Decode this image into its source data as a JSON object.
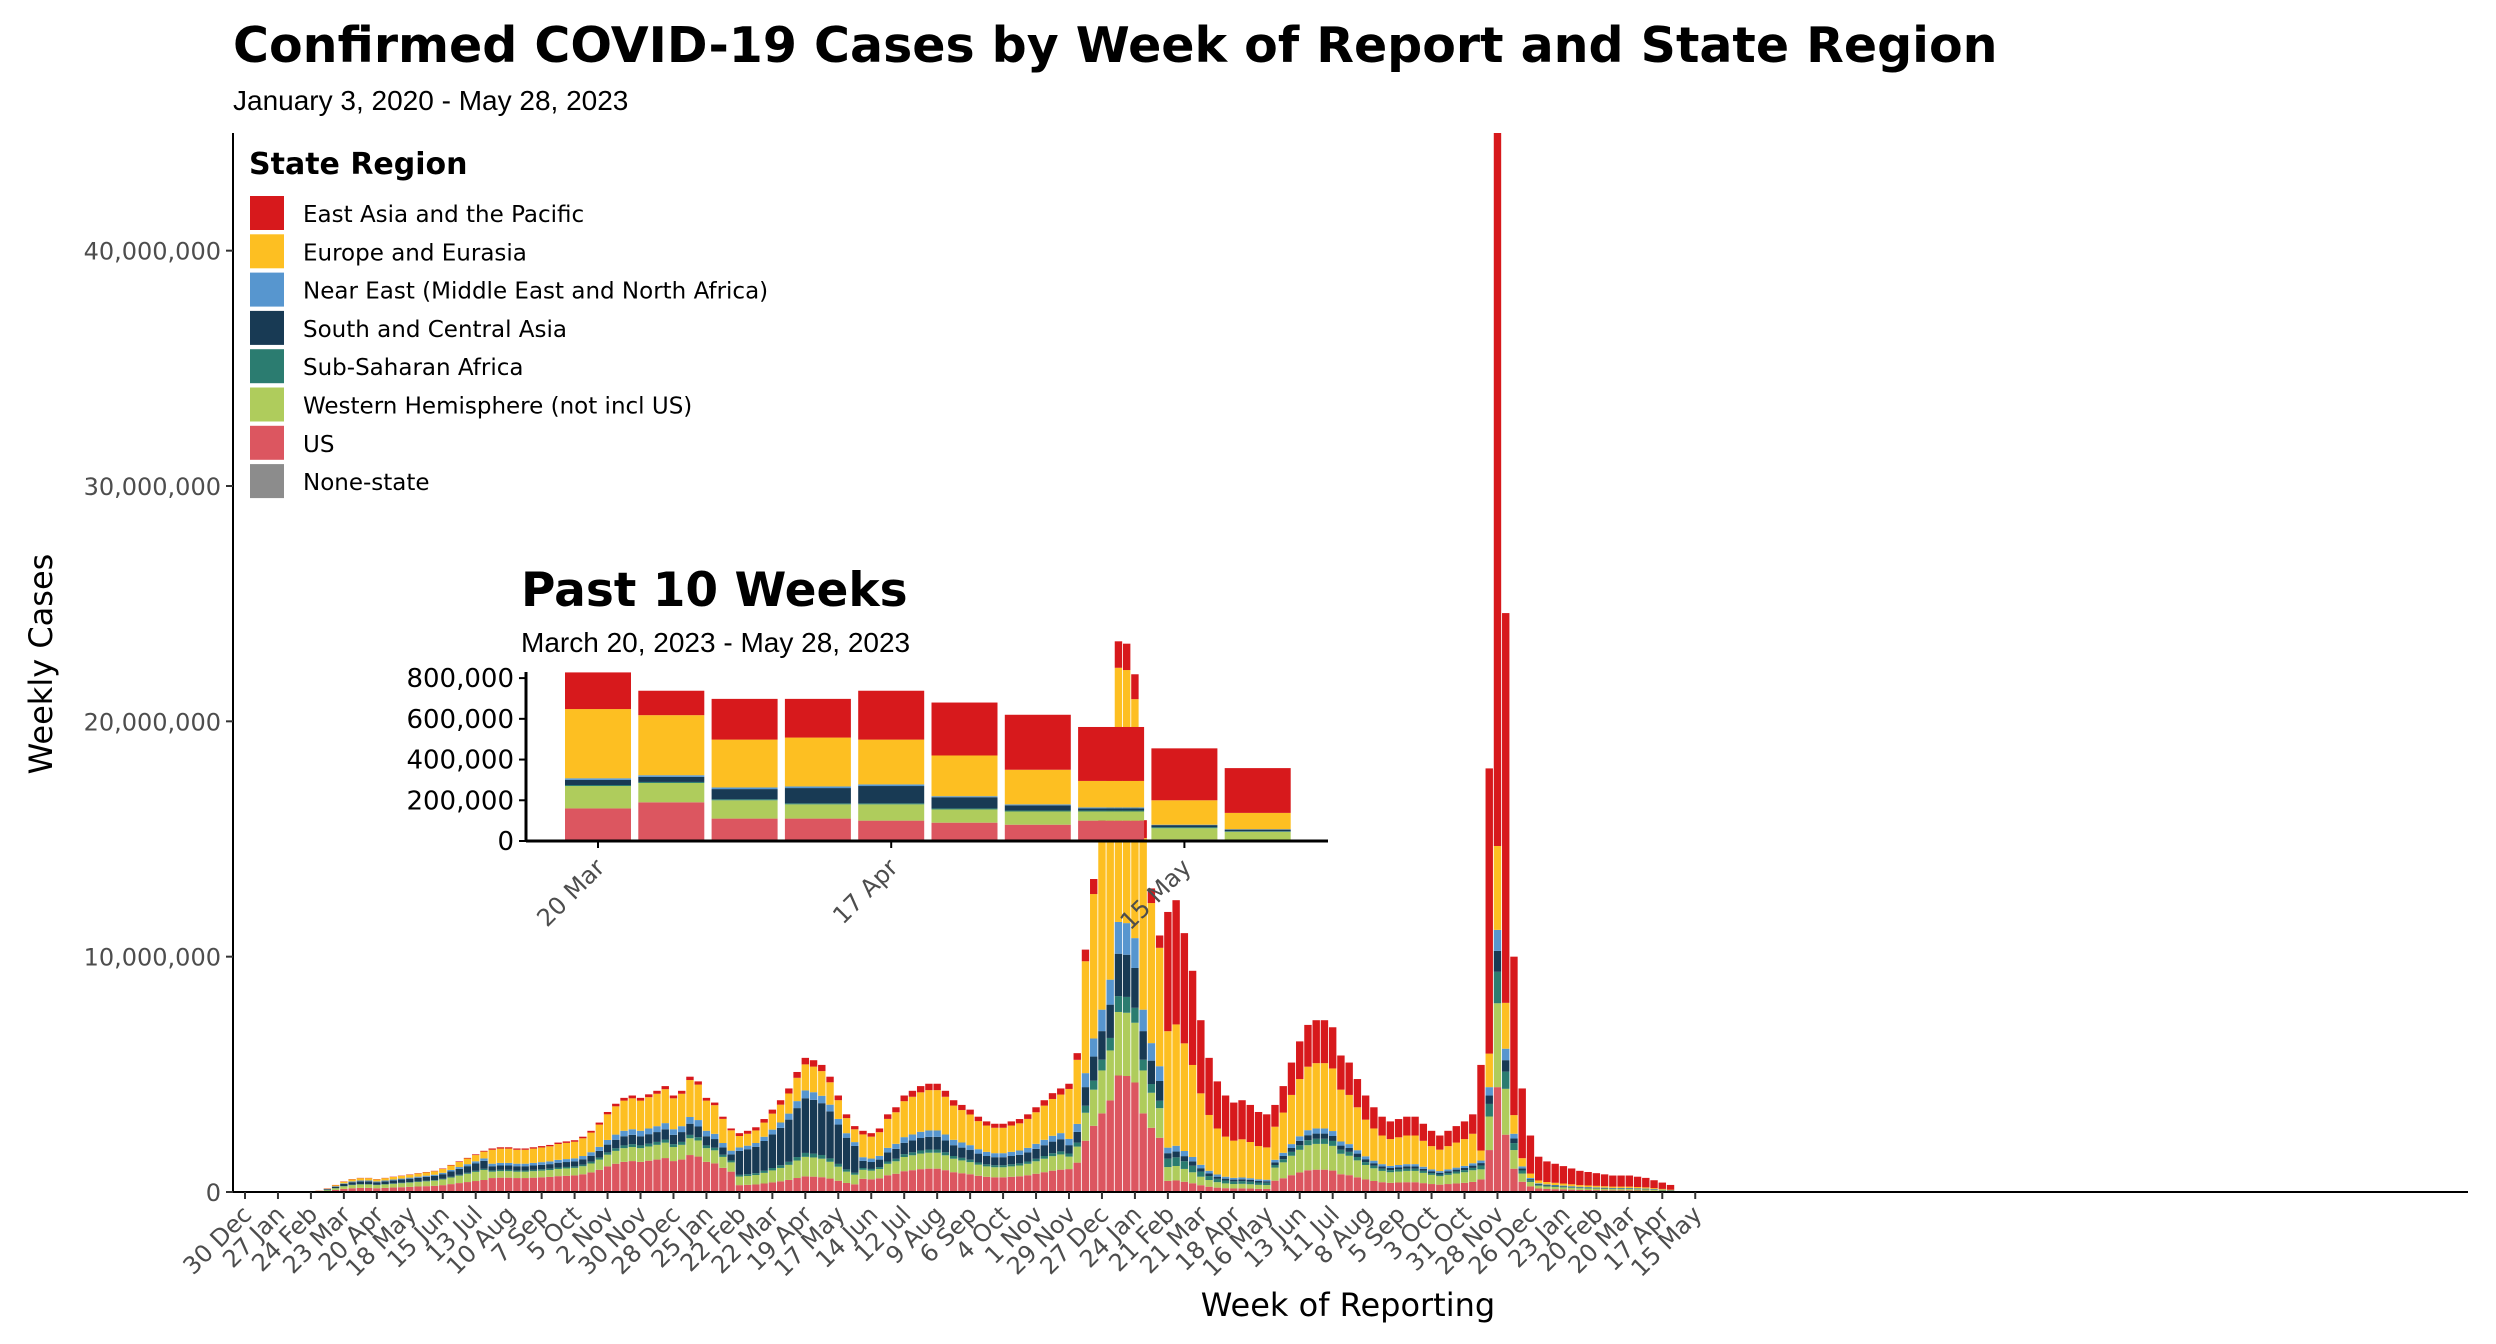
{
  "chart_data": [
    {
      "type": "bar",
      "stacked": true,
      "title": "Confirmed COVID-19 Cases by Week of Report and State Region",
      "subtitle": "January 3, 2020 - May 28, 2023",
      "xlabel": "Week of Reporting",
      "ylabel": "Weekly Cases",
      "ylim": [
        0,
        45000000
      ],
      "y_ticks": [
        0,
        10000000,
        20000000,
        30000000,
        40000000
      ],
      "y_tick_labels": [
        "0",
        "10,000,000",
        "20,000,000",
        "30,000,000",
        "40,000,000"
      ],
      "x_tick_labels": [
        "30 Dec",
        "27 Jan",
        "24 Feb",
        "23 Mar",
        "20 Apr",
        "18 May",
        "15 Jun",
        "13 Jul",
        "10 Aug",
        "7 Sep",
        "5 Oct",
        "2 Nov",
        "30 Nov",
        "28 Dec",
        "25 Jan",
        "22 Feb",
        "22 Mar",
        "19 Apr",
        "17 May",
        "14 Jun",
        "12 Jul",
        "9 Aug",
        "6 Sep",
        "4 Oct",
        "1 Nov",
        "29 Nov",
        "27 Dec",
        "24 Jan",
        "21 Feb",
        "21 Mar",
        "18 Apr",
        "16 May",
        "13 Jun",
        "11 Jul",
        "8 Aug",
        "5 Sep",
        "3 Oct",
        "31 Oct",
        "28 Nov",
        "26 Dec",
        "23 Jan",
        "20 Feb",
        "20 Mar",
        "17 Apr",
        "15 May"
      ],
      "grid": false,
      "legend": {
        "title": "State Region",
        "placement": "top-left",
        "entries": [
          {
            "name": "East Asia and the Pacific",
            "color": "#d7191c"
          },
          {
            "name": "Europe and Eurasia",
            "color": "#fdbf22"
          },
          {
            "name": "Near East (Middle East and North Africa)",
            "color": "#5796cf"
          },
          {
            "name": "South and Central Asia",
            "color": "#183a54"
          },
          {
            "name": "Sub-Saharan Africa",
            "color": "#2b7c70"
          },
          {
            "name": "Western Hemisphere (not incl US)",
            "color": "#afcc5c"
          },
          {
            "name": "US",
            "color": "#dc5660"
          },
          {
            "name": "None-state",
            "color": "#8c8c8c"
          }
        ]
      },
      "weeks_per_tick": 4,
      "weekly_totals": [
        0,
        0,
        0,
        0,
        0,
        0,
        0,
        0,
        0,
        0.05,
        0.15,
        0.3,
        0.45,
        0.55,
        0.6,
        0.6,
        0.55,
        0.6,
        0.65,
        0.7,
        0.75,
        0.8,
        0.85,
        0.9,
        1.0,
        1.15,
        1.3,
        1.45,
        1.6,
        1.75,
        1.85,
        1.9,
        1.9,
        1.85,
        1.85,
        1.9,
        1.95,
        2.0,
        2.1,
        2.15,
        2.2,
        2.35,
        2.6,
        2.95,
        3.4,
        3.75,
        4.0,
        4.1,
        4.0,
        4.15,
        4.3,
        4.5,
        4.1,
        4.3,
        4.9,
        4.7,
        4.0,
        3.8,
        3.2,
        2.7,
        2.5,
        2.6,
        2.75,
        3.1,
        3.5,
        3.9,
        4.4,
        5.1,
        5.7,
        5.6,
        5.4,
        4.9,
        4.1,
        3.3,
        2.8,
        2.6,
        2.5,
        2.7,
        3.3,
        3.6,
        4.1,
        4.3,
        4.5,
        4.6,
        4.6,
        4.3,
        3.9,
        3.7,
        3.5,
        3.2,
        3.0,
        2.9,
        2.9,
        3.0,
        3.1,
        3.3,
        3.6,
        3.9,
        4.2,
        4.4,
        4.6,
        5.9,
        10.3,
        13.3,
        15.8,
        18.4,
        23.4,
        23.3,
        22.0,
        15.8,
        12.9,
        10.9,
        11.9,
        12.4,
        11.0,
        9.4,
        7.3,
        5.7,
        4.7,
        4.1,
        3.8,
        3.9,
        3.7,
        3.4,
        3.3,
        3.7,
        4.5,
        5.5,
        6.4,
        7.1,
        7.3,
        7.3,
        7.0,
        5.8,
        5.5,
        4.8,
        4.1,
        3.6,
        3.2,
        3.0,
        3.1,
        3.2,
        3.2,
        2.9,
        2.6,
        2.4,
        2.6,
        2.8,
        3.0,
        3.3,
        5.4,
        18.0,
        45.0,
        24.6,
        10.0,
        4.4,
        2.4,
        1.5,
        1.3,
        1.2,
        1.1,
        1.0,
        0.9,
        0.85,
        0.8,
        0.75,
        0.7,
        0.7,
        0.7,
        0.65,
        0.6,
        0.5,
        0.4,
        0.3
      ],
      "weekly_totals_unit": "millions of cases"
    },
    {
      "type": "bar",
      "stacked": true,
      "title": "Past 10 Weeks",
      "subtitle": "March 20, 2023 - May 28, 2023",
      "ylim": [
        0,
        830000
      ],
      "y_ticks": [
        0,
        200000,
        400000,
        600000,
        800000
      ],
      "y_tick_labels": [
        "0",
        "200,000",
        "400,000",
        "600,000",
        "800,000"
      ],
      "x_tick_labels": [
        {
          "label": "20 Mar",
          "week_index": 0
        },
        {
          "label": "17 Apr",
          "week_index": 4
        },
        {
          "label": "15 May",
          "week_index": 8
        }
      ],
      "weeks": [
        {
          "US": 160000,
          "Western Hemisphere (not incl US)": 110000,
          "Sub-Saharan Africa": 5000,
          "South and Central Asia": 25000,
          "Near East (Middle East and North Africa)": 8000,
          "Europe and Eurasia": 340000,
          "East Asia and the Pacific": 180000
        },
        {
          "US": 190000,
          "Western Hemisphere (not incl US)": 95000,
          "Sub-Saharan Africa": 5000,
          "South and Central Asia": 25000,
          "Near East (Middle East and North Africa)": 8000,
          "Europe and Eurasia": 295000,
          "East Asia and the Pacific": 120000
        },
        {
          "US": 110000,
          "Western Hemisphere (not incl US)": 90000,
          "Sub-Saharan Africa": 5000,
          "South and Central Asia": 50000,
          "Near East (Middle East and North Africa)": 8000,
          "Europe and Eurasia": 235000,
          "East Asia and the Pacific": 200000
        },
        {
          "US": 110000,
          "Western Hemisphere (not incl US)": 70000,
          "Sub-Saharan Africa": 5000,
          "South and Central Asia": 75000,
          "Near East (Middle East and North Africa)": 8000,
          "Europe and Eurasia": 240000,
          "East Asia and the Pacific": 190000
        },
        {
          "US": 100000,
          "Western Hemisphere (not incl US)": 80000,
          "Sub-Saharan Africa": 5000,
          "South and Central Asia": 85000,
          "Near East (Middle East and North Africa)": 8000,
          "Europe and Eurasia": 220000,
          "East Asia and the Pacific": 240000
        },
        {
          "US": 90000,
          "Western Hemisphere (not incl US)": 65000,
          "Sub-Saharan Africa": 5000,
          "South and Central Asia": 55000,
          "Near East (Middle East and North Africa)": 5000,
          "Europe and Eurasia": 200000,
          "East Asia and the Pacific": 260000
        },
        {
          "US": 80000,
          "Western Hemisphere (not incl US)": 65000,
          "Sub-Saharan Africa": 5000,
          "South and Central Asia": 25000,
          "Near East (Middle East and North Africa)": 5000,
          "Europe and Eurasia": 170000,
          "East Asia and the Pacific": 270000
        },
        {
          "US": 100000,
          "Western Hemisphere (not incl US)": 45000,
          "Sub-Saharan Africa": 5000,
          "South and Central Asia": 10000,
          "Near East (Middle East and North Africa)": 5000,
          "Europe and Eurasia": 130000,
          "East Asia and the Pacific": 265000
        },
        {
          "US": 8000,
          "Western Hemisphere (not incl US)": 55000,
          "Sub-Saharan Africa": 5000,
          "South and Central Asia": 10000,
          "Near East (Middle East and North Africa)": 2000,
          "Europe and Eurasia": 120000,
          "East Asia and the Pacific": 255000
        },
        {
          "US": 5000,
          "Western Hemisphere (not incl US)": 40000,
          "Sub-Saharan Africa": 3000,
          "South and Central Asia": 8000,
          "Near East (Middle East and North Africa)": 2000,
          "Europe and Eurasia": 80000,
          "East Asia and the Pacific": 220000
        }
      ]
    }
  ]
}
